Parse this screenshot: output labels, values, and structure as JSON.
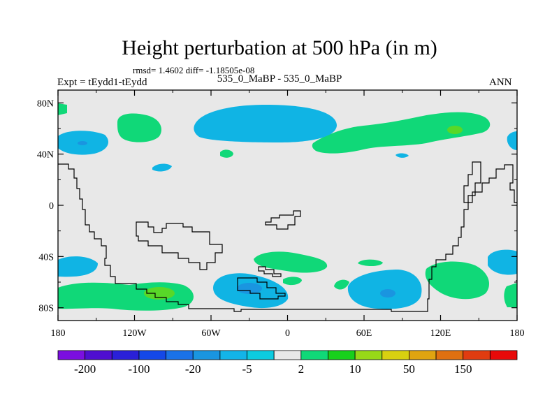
{
  "chart_data": {
    "type": "heatmap",
    "title": "Height perturbation at 500 hPa (in m)",
    "stats": "rmsd= 1.4602 diff= -1.18505e-08",
    "left_label": "Expt = tEydd1-tEydd",
    "center_label": "535_0_MaBP - 535_0_MaBP",
    "right_label": "ANN",
    "x_ticks": [
      "180",
      "120W",
      "60W",
      "0",
      "60E",
      "120E",
      "180"
    ],
    "y_ticks": [
      "80N",
      "40N",
      "0",
      "40S",
      "80S"
    ],
    "xlim": [
      -180,
      180
    ],
    "ylim": [
      -90,
      90
    ],
    "colorbar": {
      "colors": [
        "#7b0fe0",
        "#4f0fd0",
        "#2a20d8",
        "#1448e8",
        "#1a72e8",
        "#1a95e0",
        "#13b4e8",
        "#0ccbe0",
        "#e8e8e8",
        "#10d878",
        "#18d01c",
        "#98d818",
        "#d8d010",
        "#e0a410",
        "#e07010",
        "#e03c10",
        "#e80a0a"
      ],
      "labels": [
        "-200",
        "-100",
        "-20",
        "-5",
        "2",
        "10",
        "50",
        "150"
      ]
    },
    "fill_colors": {
      "background": "#e8e8e8",
      "positive": "#10d878",
      "negative": "#10b4e4",
      "strong_positive": "#58d828",
      "strong_negative": "#1a95e0"
    }
  }
}
